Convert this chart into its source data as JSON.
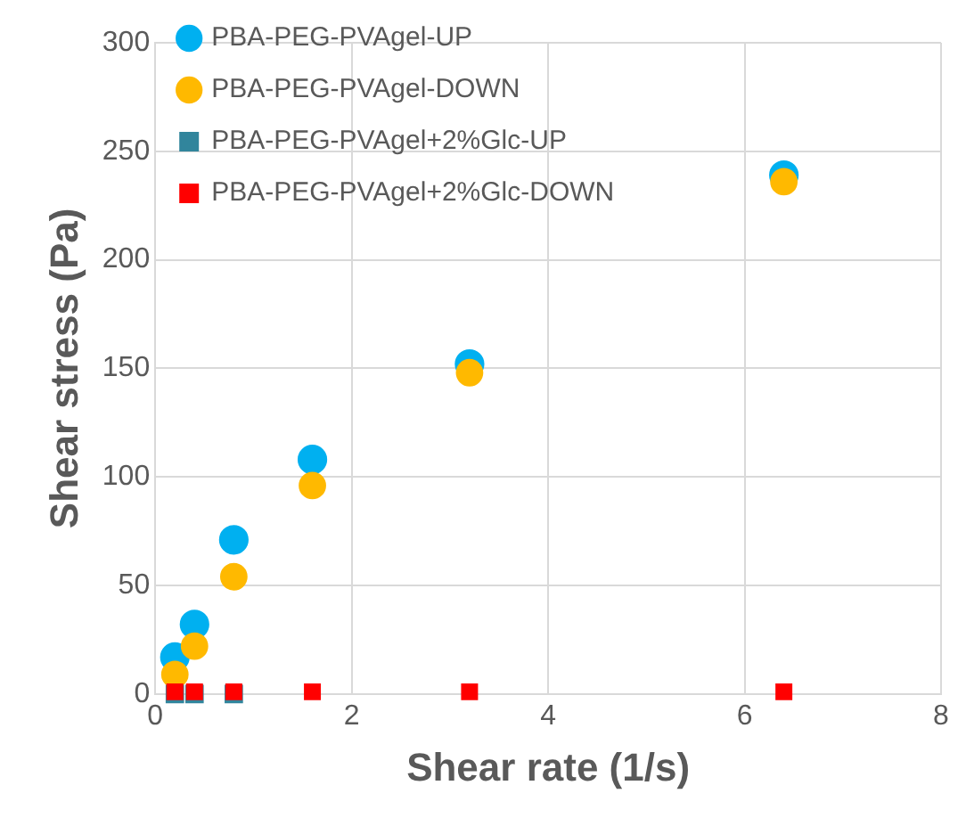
{
  "chart_data": {
    "type": "scatter",
    "xlabel": "Shear rate (1/s)",
    "ylabel": "Shear stress (Pa)",
    "xlim": [
      0,
      8
    ],
    "xticks": [
      0,
      2,
      4,
      6,
      8
    ],
    "ylim": [
      0,
      300
    ],
    "yticks": [
      0,
      50,
      100,
      150,
      200,
      250,
      300
    ],
    "grid": true,
    "legend": "top left",
    "series": [
      {
        "name": "PBA-PEG-PVAgel-UP",
        "color": "#00b0f0",
        "marker": "circle",
        "x": [
          0.2,
          0.4,
          0.8,
          1.6,
          3.2,
          6.4
        ],
        "values": [
          17,
          32,
          71,
          108,
          152,
          239
        ]
      },
      {
        "name": "PBA-PEG-PVAgel-DOWN",
        "color": "#ffb900",
        "marker": "circle",
        "x": [
          0.2,
          0.4,
          0.8,
          1.6,
          3.2,
          6.4
        ],
        "values": [
          9,
          22,
          54,
          96,
          148,
          236
        ]
      },
      {
        "name": "PBA-PEG-PVAgel+2%Glc-UP",
        "color": "#31859c",
        "marker": "square",
        "x": [
          0.2,
          0.4,
          0.8
        ],
        "values": [
          0,
          0,
          0
        ]
      },
      {
        "name": "PBA-PEG-PVAgel+2%Glc-DOWN",
        "color": "#ff0000",
        "marker": "square",
        "x": [
          0.2,
          0.4,
          0.8,
          1.6,
          3.2,
          6.4
        ],
        "values": [
          1,
          1,
          1,
          1,
          1,
          1
        ]
      }
    ]
  }
}
